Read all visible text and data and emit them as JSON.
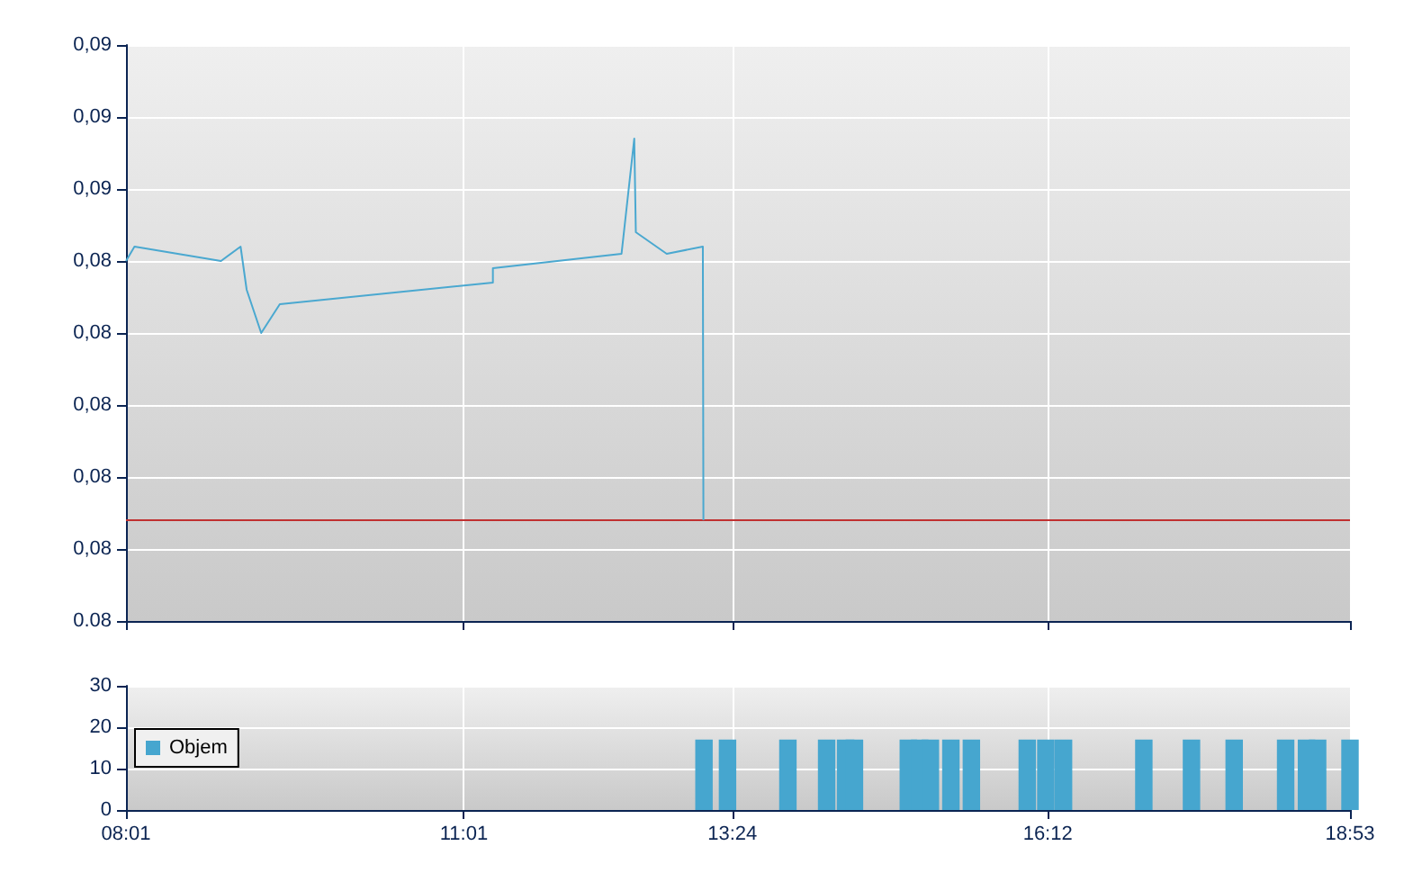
{
  "chart_data": [
    {
      "type": "line",
      "tick_labels": "y",
      "grid": true,
      "legend": false,
      "marker": "none",
      "line_style": "solid",
      "xlim": [
        8.0167,
        18.8833
      ],
      "xticks": [
        {
          "value": 8.0167,
          "label": null
        },
        {
          "value": 11.0167,
          "label": null
        },
        {
          "value": 13.4,
          "label": null
        },
        {
          "value": 16.2,
          "label": null
        },
        {
          "value": 18.8833,
          "label": null
        }
      ],
      "ylim": [
        0.08,
        0.088
      ],
      "yticks": [
        {
          "value": 0.08,
          "label": "0.08"
        },
        {
          "value": 0.081,
          "label": "0,08"
        },
        {
          "value": 0.082,
          "label": "0,08"
        },
        {
          "value": 0.083,
          "label": "0,08"
        },
        {
          "value": 0.084,
          "label": "0,08"
        },
        {
          "value": 0.085,
          "label": "0,08"
        },
        {
          "value": 0.086,
          "label": "0,09"
        },
        {
          "value": 0.087,
          "label": "0,09"
        },
        {
          "value": 0.088,
          "label": "0,09"
        }
      ],
      "series": [
        {
          "color": "#4aa8d0",
          "x": [
            8.017,
            8.092,
            8.86,
            9.034,
            9.088,
            9.217,
            9.382,
            11.274,
            11.274,
            12.416,
            12.529,
            12.543,
            12.817,
            13.138,
            13.143
          ],
          "values": [
            0.085,
            0.0852,
            0.085,
            0.0852,
            0.0846,
            0.084,
            0.0844,
            0.0847,
            0.0849,
            0.0851,
            0.0867,
            0.0854,
            0.0851,
            0.0852,
            0.0814
          ]
        }
      ],
      "ref_lines": [
        {
          "axis": "y",
          "value": 0.0814,
          "color": "#c03030"
        }
      ]
    },
    {
      "type": "bar",
      "grid": true,
      "legend": "left",
      "xlim": [
        8.0167,
        18.8833
      ],
      "xticks": [
        {
          "value": 8.0167,
          "label": "08:01"
        },
        {
          "value": 11.0167,
          "label": "11:01"
        },
        {
          "value": 13.4,
          "label": "13:24"
        },
        {
          "value": 16.2,
          "label": "16:12"
        },
        {
          "value": 18.8833,
          "label": "18:53"
        }
      ],
      "ylim": [
        0,
        30
      ],
      "yticks": [
        0,
        10,
        20,
        30
      ],
      "series": [
        {
          "name": "Objem",
          "color": "#46a6cf",
          "x": [
            13.148,
            13.357,
            13.893,
            14.237,
            14.405,
            14.484,
            14.962,
            15.063,
            15.158,
            15.34,
            15.522,
            16.018,
            16.183,
            16.34,
            17.053,
            17.476,
            17.855,
            18.312,
            18.497,
            18.596,
            18.8833
          ],
          "values": [
            17,
            17,
            17,
            17,
            17,
            17,
            17,
            17,
            17,
            17,
            17,
            17,
            17,
            17,
            17,
            17,
            17,
            17,
            17,
            17,
            17
          ]
        }
      ]
    }
  ]
}
